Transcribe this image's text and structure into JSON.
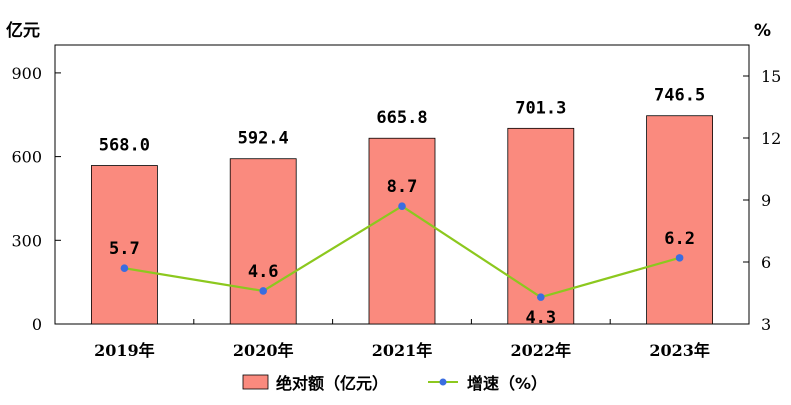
{
  "chart_data": {
    "type": "bar",
    "categories": [
      "2019年",
      "2020年",
      "2021年",
      "2022年",
      "2023年"
    ],
    "y_left": {
      "unit": "亿元",
      "ticks": [
        "0",
        "300",
        "600",
        "900"
      ],
      "lim": [
        0,
        1000
      ]
    },
    "y_right": {
      "unit": "%",
      "ticks": [
        "3",
        "6",
        "9",
        "12",
        "15"
      ],
      "lim": [
        3,
        16.5
      ]
    },
    "series": [
      {
        "name": "绝对额（亿元）",
        "type": "bar",
        "axis": "left",
        "values": [
          568.0,
          592.4,
          665.8,
          701.3,
          746.5
        ],
        "labels": [
          "568.0",
          "592.4",
          "665.8",
          "701.3",
          "746.5"
        ],
        "color": "#fa8a7e"
      },
      {
        "name": "增速（%）",
        "type": "line",
        "axis": "right",
        "values": [
          5.7,
          4.6,
          8.7,
          4.3,
          6.2
        ],
        "labels": [
          "5.7",
          "4.6",
          "8.7",
          "4.3",
          "6.2"
        ],
        "color": "#8cc81e",
        "marker_color": "#3a6de0"
      }
    ],
    "grid": false,
    "legend": "bottom"
  }
}
